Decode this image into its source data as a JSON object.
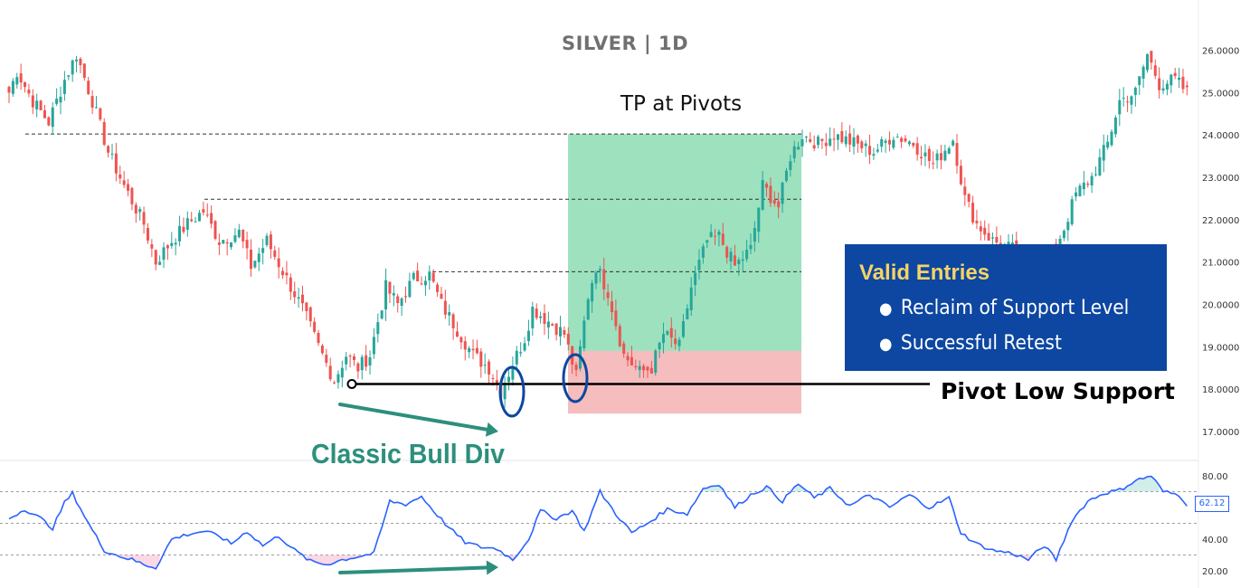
{
  "colors": {
    "bull": "#26a69a",
    "bear": "#ef5350",
    "profit_zone": "#4cc98a",
    "loss_zone": "#f4b6b6",
    "rsi_line": "#2962ff",
    "annotation_green": "#2c8f7c",
    "annotation_blue": "#0d47a1",
    "entries_title": "#f6d365"
  },
  "annotations": {
    "tp": "TP at Pivots",
    "pivot": "Pivot Low Support",
    "divergence": "Classic Bull Div",
    "entries_title": "Valid Entries",
    "entries": [
      "Reclaim of Support Level",
      "Successful Retest"
    ]
  },
  "chart_data": [
    {
      "type": "candlestick",
      "title": "SILVER | 1D",
      "ylim": [
        16.4,
        26.8
      ],
      "y_ticks": [
        "17.0000",
        "18.0000",
        "19.0000",
        "20.0000",
        "21.0000",
        "22.0000",
        "23.0000",
        "24.0000",
        "25.0000",
        "26.0000"
      ],
      "y_tick_values": [
        17,
        18,
        19,
        20,
        21,
        22,
        23,
        24,
        25,
        26
      ],
      "pivot_levels": [
        24.02,
        22.48,
        20.77
      ],
      "support_level": 18.12,
      "position": {
        "entry": 18.9,
        "target": 24.02,
        "stop": 17.42
      },
      "close_anchors": [
        [
          0,
          25.0
        ],
        [
          2,
          25.5
        ],
        [
          6,
          24.8
        ],
        [
          10,
          24.3
        ],
        [
          14,
          25.3
        ],
        [
          17,
          25.9
        ],
        [
          21,
          24.8
        ],
        [
          25,
          23.6
        ],
        [
          29,
          22.8
        ],
        [
          34,
          21.9
        ],
        [
          37,
          21.0
        ],
        [
          41,
          21.5
        ],
        [
          45,
          21.9
        ],
        [
          49,
          22.2
        ],
        [
          53,
          21.5
        ],
        [
          58,
          21.7
        ],
        [
          61,
          20.9
        ],
        [
          65,
          21.5
        ],
        [
          70,
          20.6
        ],
        [
          74,
          19.9
        ],
        [
          78,
          19.0
        ],
        [
          82,
          18.2
        ],
        [
          85,
          18.8
        ],
        [
          88,
          18.5
        ],
        [
          91,
          18.8
        ],
        [
          95,
          20.4
        ],
        [
          98,
          20.0
        ],
        [
          102,
          20.6
        ],
        [
          106,
          20.7
        ],
        [
          109,
          20.0
        ],
        [
          113,
          19.4
        ],
        [
          117,
          18.8
        ],
        [
          121,
          18.5
        ],
        [
          124,
          17.95
        ],
        [
          127,
          18.6
        ],
        [
          130,
          19.2
        ],
        [
          132,
          19.9
        ],
        [
          136,
          19.6
        ],
        [
          140,
          19.3
        ],
        [
          143,
          18.3
        ],
        [
          146,
          20.2
        ],
        [
          148,
          20.9
        ],
        [
          151,
          20.3
        ],
        [
          155,
          18.8
        ],
        [
          159,
          18.4
        ],
        [
          162,
          18.5
        ],
        [
          165,
          19.3
        ],
        [
          169,
          19.0
        ],
        [
          172,
          20.4
        ],
        [
          176,
          21.5
        ],
        [
          179,
          21.6
        ],
        [
          183,
          20.9
        ],
        [
          187,
          21.3
        ],
        [
          190,
          22.8
        ],
        [
          194,
          22.3
        ],
        [
          197,
          23.5
        ],
        [
          200,
          24.0
        ],
        [
          204,
          23.8
        ],
        [
          208,
          24.0
        ],
        [
          213,
          23.8
        ],
        [
          218,
          23.6
        ],
        [
          223,
          24.0
        ],
        [
          228,
          23.8
        ],
        [
          233,
          23.3
        ],
        [
          238,
          23.9
        ],
        [
          241,
          22.5
        ],
        [
          244,
          21.9
        ],
        [
          248,
          21.5
        ],
        [
          253,
          21.3
        ],
        [
          257,
          21.0
        ],
        [
          260,
          20.6
        ],
        [
          263,
          21.2
        ],
        [
          266,
          21.8
        ],
        [
          269,
          22.6
        ],
        [
          273,
          23.0
        ],
        [
          277,
          23.8
        ],
        [
          280,
          24.8
        ],
        [
          284,
          25.0
        ],
        [
          287,
          25.9
        ],
        [
          290,
          25.2
        ],
        [
          294,
          25.3
        ],
        [
          297,
          25.0
        ]
      ]
    },
    {
      "type": "line",
      "name": "RSI",
      "ylim": [
        12,
        88
      ],
      "y_ticks": [
        "20.00",
        "40.00",
        "80.00"
      ],
      "y_tick_values": [
        20,
        40,
        80
      ],
      "reference_lines": [
        30,
        50,
        70
      ],
      "last_value": "62.12",
      "anchors": [
        [
          0,
          53
        ],
        [
          4,
          59
        ],
        [
          8,
          53
        ],
        [
          11,
          47
        ],
        [
          14,
          63
        ],
        [
          16,
          69
        ],
        [
          20,
          50
        ],
        [
          24,
          33
        ],
        [
          27,
          30
        ],
        [
          31,
          27
        ],
        [
          34,
          24
        ],
        [
          37,
          22
        ],
        [
          41,
          40
        ],
        [
          45,
          43
        ],
        [
          49,
          45
        ],
        [
          53,
          42
        ],
        [
          56,
          37
        ],
        [
          60,
          45
        ],
        [
          64,
          36
        ],
        [
          68,
          42
        ],
        [
          72,
          33
        ],
        [
          76,
          26
        ],
        [
          80,
          24
        ],
        [
          84,
          27
        ],
        [
          88,
          29
        ],
        [
          92,
          31
        ],
        [
          96,
          64
        ],
        [
          100,
          62
        ],
        [
          104,
          67
        ],
        [
          107,
          58
        ],
        [
          111,
          47
        ],
        [
          115,
          38
        ],
        [
          119,
          35
        ],
        [
          123,
          34
        ],
        [
          127,
          27
        ],
        [
          131,
          40
        ],
        [
          134,
          58
        ],
        [
          138,
          53
        ],
        [
          142,
          58
        ],
        [
          145,
          45
        ],
        [
          149,
          70
        ],
        [
          153,
          56
        ],
        [
          157,
          44
        ],
        [
          161,
          50
        ],
        [
          166,
          59
        ],
        [
          171,
          56
        ],
        [
          175,
          72
        ],
        [
          179,
          75
        ],
        [
          183,
          60
        ],
        [
          187,
          68
        ],
        [
          191,
          73
        ],
        [
          195,
          64
        ],
        [
          199,
          75
        ],
        [
          203,
          66
        ],
        [
          207,
          72
        ],
        [
          212,
          61
        ],
        [
          217,
          68
        ],
        [
          222,
          60
        ],
        [
          227,
          68
        ],
        [
          232,
          60
        ],
        [
          237,
          66
        ],
        [
          240,
          44
        ],
        [
          244,
          37
        ],
        [
          248,
          33
        ],
        [
          253,
          31
        ],
        [
          257,
          27
        ],
        [
          261,
          36
        ],
        [
          264,
          27
        ],
        [
          268,
          52
        ],
        [
          272,
          64
        ],
        [
          276,
          69
        ],
        [
          280,
          71
        ],
        [
          284,
          77
        ],
        [
          288,
          80
        ],
        [
          291,
          70
        ],
        [
          295,
          68
        ],
        [
          297,
          62
        ]
      ]
    }
  ]
}
